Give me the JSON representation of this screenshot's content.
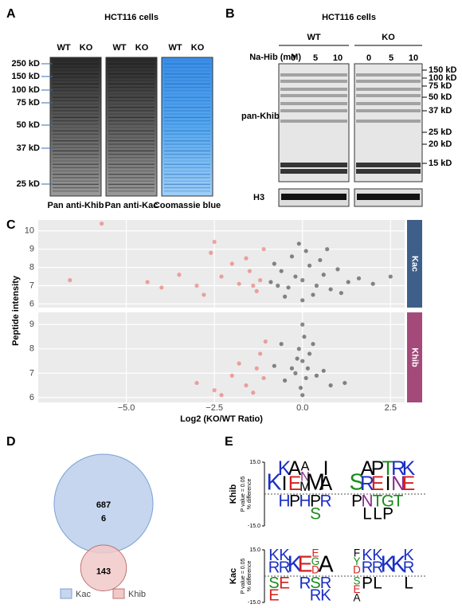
{
  "panels": {
    "A": {
      "label": "A",
      "title": "HCT116 cells",
      "markers": [
        "250 kD",
        "150 kD",
        "100 kD",
        "75 kD",
        "50 kD",
        "37 kD",
        "25 kD"
      ],
      "blots": [
        {
          "lanes": [
            "WT",
            "KO"
          ],
          "caption": "Pan anti-Khib"
        },
        {
          "lanes": [
            "WT",
            "KO"
          ],
          "caption": "Pan anti-Kac"
        },
        {
          "lanes": [
            "WT",
            "KO"
          ],
          "caption": "Coomassie blue"
        }
      ]
    },
    "B": {
      "label": "B",
      "title": "HCT116 cells",
      "groups": [
        "WT",
        "KO"
      ],
      "treatment": "Na-Hib (mM)",
      "doses": [
        "0",
        "5",
        "10"
      ],
      "blot_label": "pan-Khib",
      "loading_label": "H3",
      "markers": [
        "150 kD",
        "100 kD",
        "75 kD",
        "50 kD",
        "37 kD",
        "25 kD",
        "20 kD",
        "15 kD"
      ]
    },
    "C": {
      "label": "C",
      "type": "scatter",
      "ylabel": "Peptide intensity",
      "xlabel": "Log2 (KO/WT Ratio)",
      "xlim": [
        -7.5,
        2.9
      ],
      "xticks": [
        {
          "value": -5,
          "label": "−5.0"
        },
        {
          "value": -2.5,
          "label": "−2.5"
        },
        {
          "value": 0,
          "label": "0.0"
        },
        2.5
      ],
      "facets": [
        {
          "strip": "Kac",
          "strip_color": "#3e5f8a",
          "ylim": [
            5.8,
            10.6
          ],
          "yticks": [
            6,
            7,
            8,
            9,
            10
          ],
          "series": [
            {
              "color": "#000000",
              "x": [
                -0.9,
                -0.6,
                -0.4,
                -0.2,
                0,
                0.2,
                0.4,
                0.6,
                0.8,
                1.0,
                1.3,
                1.6,
                2.0,
                2.5,
                -0.3,
                0.1,
                -0.5,
                0.3,
                -0.1,
                0.5,
                -0.8,
                1.1,
                0.7,
                -0.7,
                0.0
              ],
              "y": [
                7.2,
                7.8,
                6.9,
                7.5,
                7.3,
                8.1,
                7.0,
                7.6,
                6.8,
                7.9,
                7.2,
                7.4,
                7.1,
                7.5,
                8.6,
                8.9,
                6.4,
                6.5,
                9.3,
                8.4,
                8.2,
                6.6,
                9.0,
                7.0,
                6.2
              ]
            },
            {
              "color": "#e8413c",
              "x": [
                -1.2,
                -1.5,
                -1.8,
                -2.0,
                -2.3,
                -2.6,
                -3.0,
                -3.5,
                -4.0,
                -5.7,
                -6.6,
                -1.3,
                -1.6,
                -2.5,
                -1.1,
                -2.8,
                -4.4,
                -1.4
              ],
              "y": [
                7.3,
                7.8,
                7.1,
                8.2,
                7.5,
                8.8,
                7.0,
                7.6,
                6.9,
                10.4,
                7.3,
                6.7,
                8.5,
                9.4,
                9.0,
                6.5,
                7.2,
                7.0
              ]
            }
          ]
        },
        {
          "strip": "Khib",
          "strip_color": "#a34a7a",
          "ylim": [
            5.8,
            9.5
          ],
          "yticks": [
            6,
            7,
            8,
            9
          ],
          "series": [
            {
              "color": "#000000",
              "x": [
                -0.2,
                0,
                0.1,
                -0.1,
                0.05,
                -0.3,
                0.2,
                0,
                -0.5,
                0.4,
                -0.8,
                0.6,
                -0.05,
                0.15,
                1.2,
                -0.6,
                0.3,
                0,
                0.8,
                -0.15
              ],
              "y": [
                7.0,
                7.5,
                6.8,
                8.0,
                8.5,
                7.2,
                7.8,
                9.0,
                6.7,
                6.9,
                7.3,
                7.1,
                6.4,
                7.2,
                6.6,
                8.2,
                8.2,
                6.1,
                6.5,
                7.6
              ]
            },
            {
              "color": "#e8413c",
              "x": [
                -1.1,
                -1.3,
                -1.6,
                -2.0,
                -2.5,
                -1.2,
                -1.8,
                -2.3,
                -1.05,
                -1.4,
                -3.0
              ],
              "y": [
                6.8,
                7.2,
                6.5,
                6.9,
                6.3,
                7.8,
                7.4,
                6.1,
                8.3,
                6.2,
                6.6
              ]
            }
          ]
        }
      ]
    },
    "D": {
      "label": "D",
      "sets": [
        "Kac",
        "Khib"
      ],
      "only_kac": 687,
      "both": 6,
      "only_khib": 143
    },
    "E": {
      "label": "E",
      "axis_note": [
        "P value = 0.05",
        "% difference"
      ],
      "yticks": [
        {
          "value": 15,
          "label": "15.0"
        },
        {
          "value": -15,
          "label": "-15.0"
        }
      ],
      "logos": [
        {
          "name": "Khib",
          "up": [
            [
              "K"
            ],
            [
              "K",
              "I"
            ],
            [
              "A",
              "E"
            ],
            [
              "A",
              "N",
              "M"
            ],
            [
              "M"
            ],
            [
              "I",
              "A"
            ],
            [],
            [],
            [
              "S"
            ],
            [
              "A",
              "R"
            ],
            [
              "P",
              "E"
            ],
            [
              "T",
              "I"
            ],
            [
              "R",
              "N"
            ],
            [
              "K",
              "E"
            ]
          ],
          "down": [
            [],
            [
              "H"
            ],
            [
              "P"
            ],
            [
              "H"
            ],
            [
              "P",
              "S"
            ],
            [
              "R"
            ],
            [],
            [],
            [
              "P"
            ],
            [
              "N",
              "L"
            ],
            [
              "T",
              "L"
            ],
            [
              "G",
              "P"
            ],
            [
              "T"
            ],
            []
          ]
        },
        {
          "name": "Kac",
          "up": [
            [
              "K",
              "R"
            ],
            [
              "K",
              "R"
            ],
            [
              "K"
            ],
            [
              "E"
            ],
            [
              "E",
              "G",
              "D"
            ],
            [
              "A"
            ],
            [],
            [],
            [
              "F",
              "Y",
              "D"
            ],
            [
              "K",
              "R"
            ],
            [
              "K",
              "R"
            ],
            [
              "K"
            ],
            [
              "K"
            ],
            [
              "K",
              "R"
            ]
          ],
          "down": [
            [
              "S",
              "E"
            ],
            [
              "E"
            ],
            [],
            [
              "R"
            ],
            [
              "S",
              "R"
            ],
            [
              "R",
              "K"
            ],
            [],
            [],
            [
              "S",
              "E",
              "A"
            ],
            [
              "P"
            ],
            [
              "L"
            ],
            [],
            [],
            [
              "L"
            ]
          ]
        }
      ]
    }
  }
}
